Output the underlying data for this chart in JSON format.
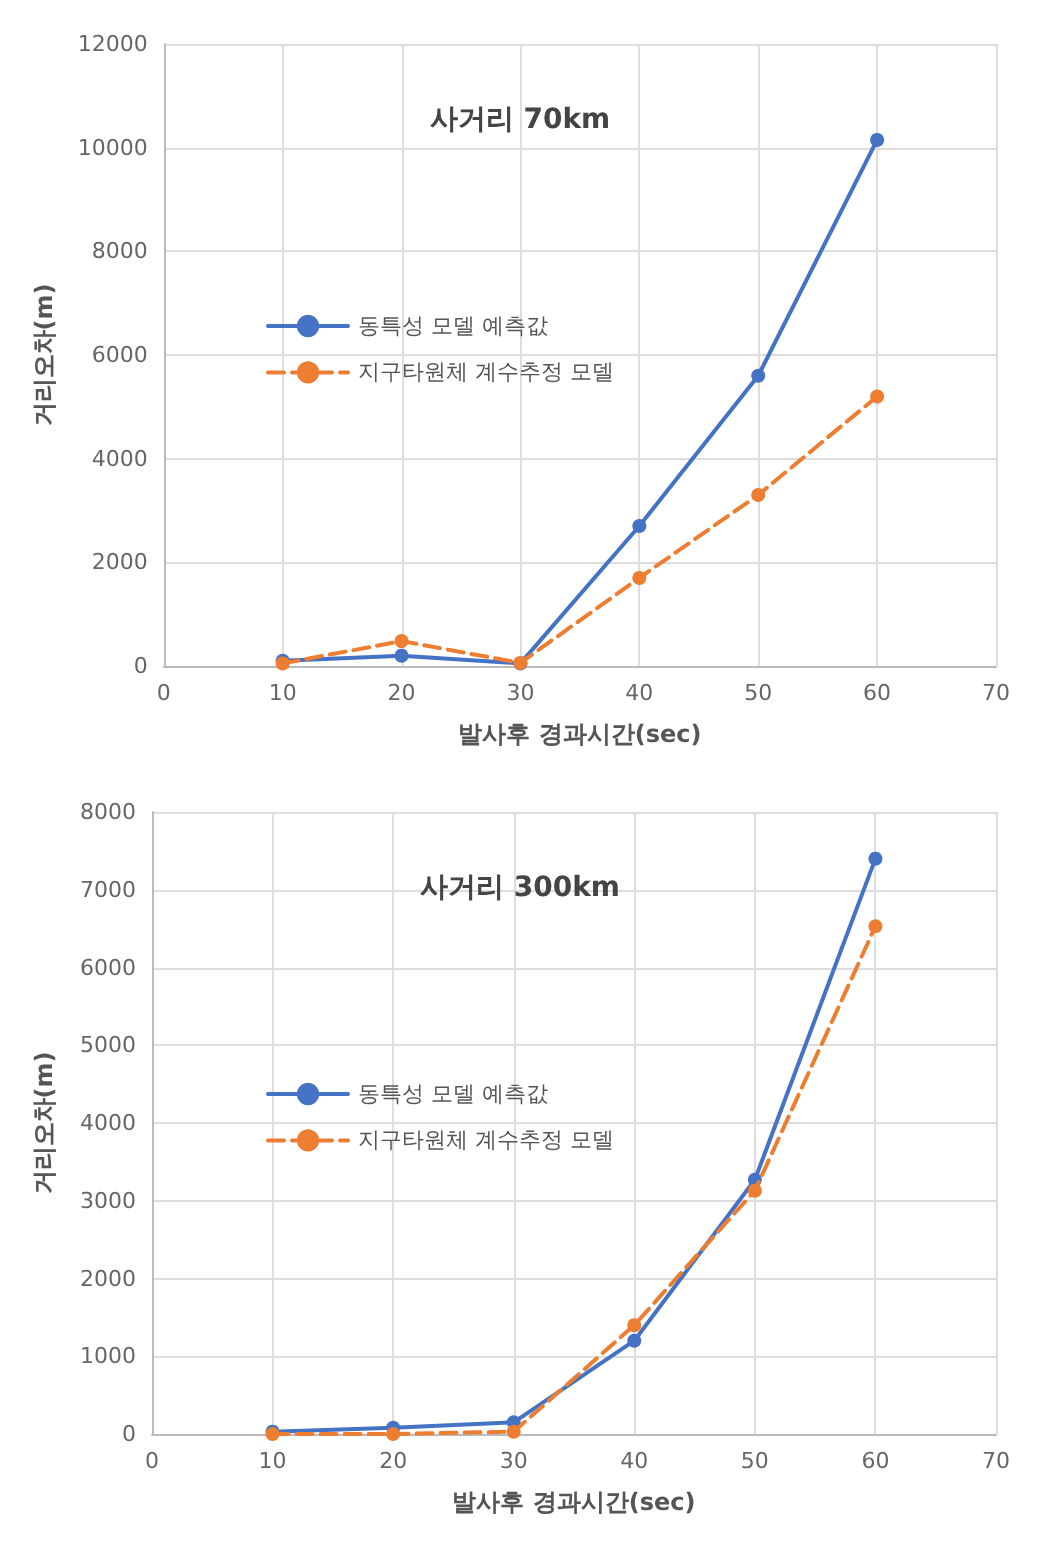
{
  "chart_data": [
    {
      "type": "line",
      "title": "사거리 70km",
      "xlabel": "발사후 경과시간(sec)",
      "ylabel": "거리오차(m)",
      "x": [
        10,
        20,
        30,
        40,
        50,
        60
      ],
      "series": [
        {
          "name": "동특성 모델 예측값",
          "color": "#4472c4",
          "line_style": "solid",
          "values": [
            100,
            200,
            50,
            2700,
            5600,
            10150
          ]
        },
        {
          "name": "지구타원체 계수추정 모델",
          "color": "#ed7d31",
          "line_style": "dashed",
          "values": [
            50,
            480,
            60,
            1700,
            3300,
            5200
          ]
        }
      ],
      "xlim": [
        0,
        70
      ],
      "xticks": [
        0,
        10,
        20,
        30,
        40,
        50,
        60,
        70
      ],
      "ylim": [
        0,
        12000
      ],
      "yticks": [
        0,
        2000,
        4000,
        6000,
        8000,
        10000,
        12000
      ],
      "grid": true,
      "legend": "left",
      "marker": "circle"
    },
    {
      "type": "line",
      "title": "사거리 300km",
      "xlabel": "발사후 경과시간(sec)",
      "ylabel": "거리오차(m)",
      "x": [
        10,
        20,
        30,
        40,
        50,
        60
      ],
      "series": [
        {
          "name": "동특성 모델 예측값",
          "color": "#4472c4",
          "line_style": "solid",
          "values": [
            30,
            80,
            150,
            1200,
            3270,
            7400
          ]
        },
        {
          "name": "지구타원체 계수추정 모델",
          "color": "#ed7d31",
          "line_style": "dashed",
          "values": [
            0,
            0,
            30,
            1400,
            3130,
            6530
          ]
        }
      ],
      "xlim": [
        0,
        70
      ],
      "xticks": [
        0,
        10,
        20,
        30,
        40,
        50,
        60,
        70
      ],
      "ylim": [
        0,
        8000
      ],
      "yticks": [
        0,
        1000,
        2000,
        3000,
        4000,
        5000,
        6000,
        7000,
        8000
      ],
      "grid": true,
      "legend": "left",
      "marker": "circle"
    }
  ]
}
